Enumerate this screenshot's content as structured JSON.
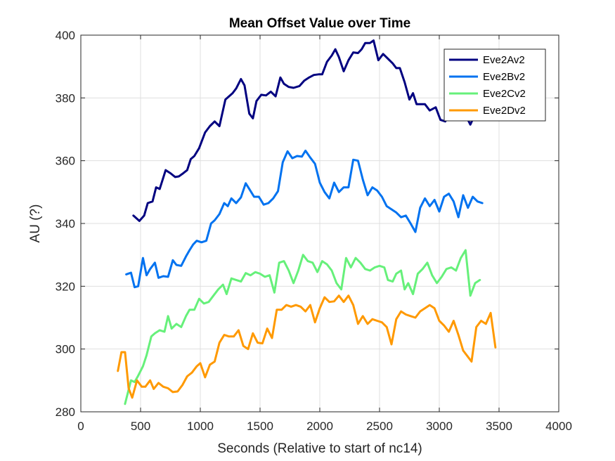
{
  "chart_data": {
    "type": "line",
    "title": "Mean Offset Value over Time",
    "xlabel": "Seconds (Relative to start of nc14)",
    "ylabel": "AU (?)",
    "xlim": [
      0,
      4000
    ],
    "ylim": [
      280,
      400
    ],
    "xticks": [
      0,
      500,
      1000,
      1500,
      2000,
      2500,
      3000,
      3500,
      4000
    ],
    "yticks": [
      280,
      300,
      320,
      340,
      360,
      380,
      400
    ],
    "grid": true,
    "legend_position": "top-right",
    "series": [
      {
        "name": "Eve2Av2",
        "color": "#000080",
        "points": [
          [
            440,
            342.5
          ],
          [
            490,
            340.8
          ],
          [
            530,
            342.5
          ],
          [
            560,
            346.5
          ],
          [
            600,
            347
          ],
          [
            630,
            351.5
          ],
          [
            660,
            351
          ],
          [
            710,
            357
          ],
          [
            750,
            356
          ],
          [
            790,
            354.8
          ],
          [
            820,
            355
          ],
          [
            850,
            355.8
          ],
          [
            890,
            357
          ],
          [
            920,
            360.5
          ],
          [
            950,
            361.5
          ],
          [
            990,
            364
          ],
          [
            1040,
            369
          ],
          [
            1080,
            371
          ],
          [
            1120,
            372.5
          ],
          [
            1160,
            371
          ],
          [
            1210,
            379.5
          ],
          [
            1240,
            380.5
          ],
          [
            1270,
            381.5
          ],
          [
            1300,
            383
          ],
          [
            1340,
            386
          ],
          [
            1370,
            384
          ],
          [
            1410,
            375
          ],
          [
            1440,
            373.5
          ],
          [
            1470,
            379
          ],
          [
            1510,
            381
          ],
          [
            1550,
            380.8
          ],
          [
            1590,
            382
          ],
          [
            1630,
            380.5
          ],
          [
            1670,
            386.5
          ],
          [
            1700,
            384.5
          ],
          [
            1740,
            383.5
          ],
          [
            1780,
            383.2
          ],
          [
            1830,
            383.8
          ],
          [
            1870,
            385.5
          ],
          [
            1910,
            386.5
          ],
          [
            1950,
            387.3
          ],
          [
            1990,
            387.5
          ],
          [
            2020,
            387.5
          ],
          [
            2060,
            391.5
          ],
          [
            2100,
            393.5
          ],
          [
            2130,
            395.5
          ],
          [
            2160,
            393
          ],
          [
            2200,
            388.5
          ],
          [
            2240,
            392
          ],
          [
            2280,
            394.5
          ],
          [
            2320,
            394.3
          ],
          [
            2350,
            395.5
          ],
          [
            2380,
            397.5
          ],
          [
            2420,
            397.5
          ],
          [
            2450,
            398.3
          ],
          [
            2490,
            392
          ],
          [
            2530,
            394
          ],
          [
            2570,
            392.5
          ],
          [
            2610,
            391
          ],
          [
            2640,
            389.5
          ],
          [
            2670,
            389.5
          ],
          [
            2710,
            385
          ],
          [
            2750,
            379.5
          ],
          [
            2780,
            381.5
          ],
          [
            2810,
            378
          ],
          [
            2840,
            378
          ],
          [
            2880,
            378
          ],
          [
            2920,
            376
          ],
          [
            2970,
            377
          ],
          [
            3010,
            373
          ],
          [
            3050,
            372.5
          ],
          [
            3090,
            375
          ],
          [
            3130,
            376
          ],
          [
            3180,
            373.5
          ],
          [
            3220,
            374.5
          ],
          [
            3260,
            371.5
          ],
          [
            3290,
            374
          ]
        ]
      },
      {
        "name": "Eve2Bv2",
        "color": "#0072F0",
        "points": [
          [
            380,
            323.8
          ],
          [
            420,
            324.3
          ],
          [
            450,
            319.7
          ],
          [
            480,
            320
          ],
          [
            520,
            329
          ],
          [
            550,
            323.5
          ],
          [
            580,
            325.5
          ],
          [
            620,
            327.5
          ],
          [
            650,
            322.7
          ],
          [
            690,
            323.2
          ],
          [
            730,
            323
          ],
          [
            770,
            328.3
          ],
          [
            800,
            326.8
          ],
          [
            840,
            326.5
          ],
          [
            880,
            329.5
          ],
          [
            910,
            331.5
          ],
          [
            940,
            333.3
          ],
          [
            970,
            334.5
          ],
          [
            1010,
            334
          ],
          [
            1050,
            334.5
          ],
          [
            1090,
            340
          ],
          [
            1120,
            341
          ],
          [
            1160,
            343
          ],
          [
            1200,
            346.5
          ],
          [
            1230,
            345.5
          ],
          [
            1260,
            348
          ],
          [
            1300,
            346.5
          ],
          [
            1340,
            348.3
          ],
          [
            1380,
            352.8
          ],
          [
            1410,
            351
          ],
          [
            1450,
            348.5
          ],
          [
            1490,
            348.5
          ],
          [
            1530,
            346
          ],
          [
            1570,
            346.5
          ],
          [
            1610,
            348
          ],
          [
            1650,
            350.3
          ],
          [
            1690,
            359.5
          ],
          [
            1730,
            363
          ],
          [
            1770,
            360.8
          ],
          [
            1810,
            361.5
          ],
          [
            1850,
            361.3
          ],
          [
            1880,
            363.2
          ],
          [
            1920,
            361
          ],
          [
            1960,
            359
          ],
          [
            2000,
            353
          ],
          [
            2040,
            350
          ],
          [
            2080,
            348
          ],
          [
            2120,
            353
          ],
          [
            2160,
            350
          ],
          [
            2200,
            351.5
          ],
          [
            2240,
            351.5
          ],
          [
            2280,
            360.3
          ],
          [
            2320,
            360
          ],
          [
            2360,
            354
          ],
          [
            2400,
            349
          ],
          [
            2440,
            351.5
          ],
          [
            2480,
            350.5
          ],
          [
            2520,
            348.5
          ],
          [
            2560,
            345.5
          ],
          [
            2600,
            344.5
          ],
          [
            2640,
            343.5
          ],
          [
            2680,
            342
          ],
          [
            2720,
            342.5
          ],
          [
            2760,
            340
          ],
          [
            2800,
            337.3
          ],
          [
            2840,
            345
          ],
          [
            2880,
            348
          ],
          [
            2920,
            345.5
          ],
          [
            2960,
            347.5
          ],
          [
            3000,
            343.8
          ],
          [
            3040,
            348.5
          ],
          [
            3080,
            349.5
          ],
          [
            3120,
            347
          ],
          [
            3160,
            342
          ],
          [
            3200,
            349
          ],
          [
            3240,
            345
          ],
          [
            3280,
            348.5
          ],
          [
            3320,
            347
          ],
          [
            3360,
            346.5
          ]
        ]
      },
      {
        "name": "Eve2Cv2",
        "color": "#66F07A",
        "points": [
          [
            370,
            282.5
          ],
          [
            420,
            290
          ],
          [
            450,
            289.5
          ],
          [
            480,
            291.5
          ],
          [
            520,
            294.5
          ],
          [
            550,
            298
          ],
          [
            590,
            304
          ],
          [
            620,
            305
          ],
          [
            660,
            306
          ],
          [
            700,
            305.5
          ],
          [
            730,
            310.5
          ],
          [
            760,
            306.5
          ],
          [
            800,
            308
          ],
          [
            840,
            307
          ],
          [
            880,
            310.5
          ],
          [
            910,
            312.5
          ],
          [
            950,
            312.5
          ],
          [
            990,
            316
          ],
          [
            1030,
            314.5
          ],
          [
            1070,
            315
          ],
          [
            1110,
            317
          ],
          [
            1150,
            319
          ],
          [
            1190,
            320.5
          ],
          [
            1220,
            317.5
          ],
          [
            1260,
            322.5
          ],
          [
            1300,
            322
          ],
          [
            1340,
            321.5
          ],
          [
            1380,
            324.2
          ],
          [
            1420,
            323.5
          ],
          [
            1460,
            324.5
          ],
          [
            1500,
            324
          ],
          [
            1540,
            323
          ],
          [
            1580,
            323.5
          ],
          [
            1620,
            318
          ],
          [
            1660,
            327.5
          ],
          [
            1700,
            328
          ],
          [
            1740,
            325
          ],
          [
            1780,
            321
          ],
          [
            1820,
            325
          ],
          [
            1860,
            330
          ],
          [
            1900,
            328
          ],
          [
            1940,
            327.5
          ],
          [
            1980,
            324.5
          ],
          [
            2020,
            328
          ],
          [
            2060,
            327
          ],
          [
            2100,
            325
          ],
          [
            2140,
            321
          ],
          [
            2180,
            319
          ],
          [
            2220,
            329
          ],
          [
            2260,
            326
          ],
          [
            2300,
            329
          ],
          [
            2340,
            327.5
          ],
          [
            2380,
            325.5
          ],
          [
            2420,
            325
          ],
          [
            2460,
            326
          ],
          [
            2500,
            326.5
          ],
          [
            2540,
            326
          ],
          [
            2570,
            322
          ],
          [
            2610,
            321.5
          ],
          [
            2640,
            324
          ],
          [
            2680,
            325
          ],
          [
            2710,
            319
          ],
          [
            2740,
            321
          ],
          [
            2780,
            317.5
          ],
          [
            2820,
            324
          ],
          [
            2860,
            325.5
          ],
          [
            2900,
            327.5
          ],
          [
            2940,
            323.5
          ],
          [
            2980,
            321
          ],
          [
            3020,
            323
          ],
          [
            3060,
            325.5
          ],
          [
            3100,
            326
          ],
          [
            3140,
            325
          ],
          [
            3180,
            329
          ],
          [
            3220,
            331.5
          ],
          [
            3260,
            317
          ],
          [
            3300,
            321
          ],
          [
            3340,
            322
          ]
        ]
      },
      {
        "name": "Eve2Dv2",
        "color": "#FF9900",
        "points": [
          [
            310,
            293
          ],
          [
            340,
            299
          ],
          [
            370,
            299
          ],
          [
            400,
            287.5
          ],
          [
            430,
            284.5
          ],
          [
            470,
            290
          ],
          [
            510,
            288
          ],
          [
            540,
            288
          ],
          [
            580,
            290
          ],
          [
            610,
            287.3
          ],
          [
            650,
            289.2
          ],
          [
            690,
            288
          ],
          [
            730,
            287.5
          ],
          [
            770,
            286.3
          ],
          [
            810,
            286.5
          ],
          [
            850,
            288.5
          ],
          [
            890,
            291.3
          ],
          [
            930,
            292.5
          ],
          [
            970,
            294.5
          ],
          [
            1000,
            295.5
          ],
          [
            1040,
            291
          ],
          [
            1080,
            295
          ],
          [
            1120,
            296
          ],
          [
            1160,
            302
          ],
          [
            1200,
            304.5
          ],
          [
            1240,
            304
          ],
          [
            1280,
            304
          ],
          [
            1320,
            306
          ],
          [
            1360,
            301
          ],
          [
            1400,
            300
          ],
          [
            1440,
            305
          ],
          [
            1480,
            302
          ],
          [
            1520,
            301.8
          ],
          [
            1560,
            306.5
          ],
          [
            1600,
            303.5
          ],
          [
            1640,
            312.5
          ],
          [
            1680,
            312.5
          ],
          [
            1720,
            314
          ],
          [
            1760,
            313.5
          ],
          [
            1800,
            314
          ],
          [
            1840,
            313.5
          ],
          [
            1880,
            312
          ],
          [
            1920,
            314
          ],
          [
            1960,
            308.5
          ],
          [
            2000,
            313
          ],
          [
            2040,
            316.5
          ],
          [
            2080,
            315
          ],
          [
            2120,
            315.2
          ],
          [
            2160,
            317
          ],
          [
            2200,
            315
          ],
          [
            2240,
            317
          ],
          [
            2280,
            314
          ],
          [
            2320,
            308
          ],
          [
            2360,
            310.5
          ],
          [
            2400,
            308
          ],
          [
            2440,
            309.5
          ],
          [
            2480,
            309
          ],
          [
            2520,
            308.5
          ],
          [
            2560,
            307
          ],
          [
            2600,
            301.5
          ],
          [
            2640,
            309.5
          ],
          [
            2680,
            312
          ],
          [
            2720,
            311
          ],
          [
            2760,
            310.5
          ],
          [
            2800,
            310
          ],
          [
            2840,
            312
          ],
          [
            2880,
            313
          ],
          [
            2920,
            314
          ],
          [
            2960,
            313
          ],
          [
            3000,
            309
          ],
          [
            3040,
            307.5
          ],
          [
            3080,
            305.5
          ],
          [
            3120,
            309
          ],
          [
            3160,
            304.5
          ],
          [
            3200,
            299.5
          ],
          [
            3240,
            297.5
          ],
          [
            3270,
            296
          ],
          [
            3310,
            307
          ],
          [
            3350,
            309
          ],
          [
            3390,
            308
          ],
          [
            3430,
            311.5
          ],
          [
            3470,
            300.5
          ]
        ]
      }
    ]
  }
}
